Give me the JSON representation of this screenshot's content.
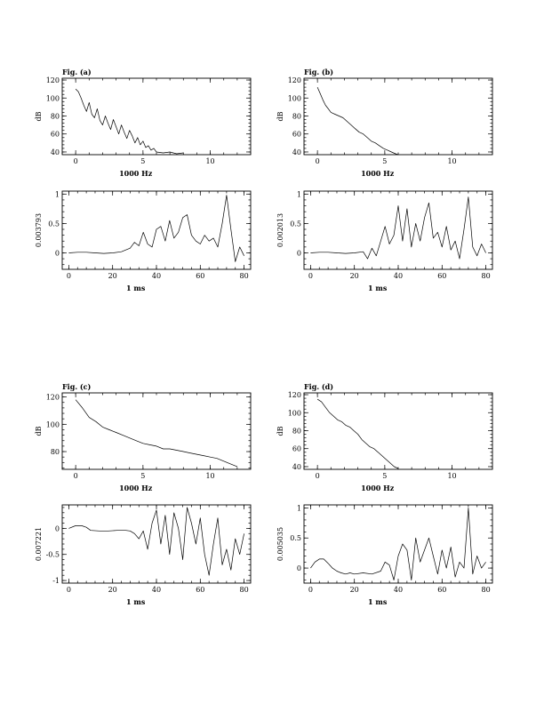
{
  "chart_data": [
    {
      "type": "line",
      "title": "Fig. (a)",
      "xlabel": "1000 Hz",
      "ylabel": "dB",
      "xlim": [
        -1,
        13
      ],
      "ylim": [
        37,
        122
      ],
      "xticks": [
        0,
        5,
        10
      ],
      "yticks": [
        40,
        60,
        80,
        100,
        120
      ],
      "series": [
        {
          "x": [
            0,
            0.2,
            0.4,
            0.6,
            0.8,
            1.0,
            1.2,
            1.4,
            1.6,
            1.8,
            2.0,
            2.2,
            2.4,
            2.6,
            2.8,
            3.0,
            3.2,
            3.4,
            3.6,
            3.8,
            4.0,
            4.2,
            4.4,
            4.6,
            4.8,
            5.0,
            5.2,
            5.4,
            5.6,
            5.8,
            6.0,
            6.5,
            7.0,
            7.5,
            8.0
          ],
          "y": [
            110,
            107,
            100,
            92,
            85,
            95,
            82,
            78,
            88,
            75,
            70,
            80,
            72,
            65,
            76,
            68,
            60,
            70,
            62,
            55,
            64,
            58,
            50,
            56,
            48,
            52,
            45,
            47,
            42,
            44,
            40,
            39,
            40,
            38,
            39
          ]
        }
      ]
    },
    {
      "type": "line",
      "title": "Fig. (b)",
      "xlabel": "1000 Hz",
      "ylabel": "dB",
      "xlim": [
        -1,
        13
      ],
      "ylim": [
        37,
        122
      ],
      "xticks": [
        0,
        5,
        10
      ],
      "yticks": [
        40,
        60,
        80,
        100,
        120
      ],
      "series": [
        {
          "x": [
            0,
            0.2,
            0.4,
            0.6,
            0.8,
            1.0,
            1.3,
            1.6,
            1.9,
            2.2,
            2.5,
            2.8,
            3.1,
            3.4,
            3.7,
            4.0,
            4.3,
            4.6,
            4.9,
            5.2,
            5.5,
            5.8,
            6.0
          ],
          "y": [
            112,
            105,
            98,
            92,
            88,
            84,
            82,
            80,
            78,
            74,
            70,
            66,
            62,
            60,
            56,
            52,
            50,
            47,
            44,
            42,
            40,
            38,
            37
          ]
        }
      ]
    },
    {
      "type": "line",
      "title": "",
      "xlabel": "1 ms",
      "ylabel": "0.003793",
      "xlim": [
        -3,
        83
      ],
      "ylim": [
        -0.28,
        1.05
      ],
      "xticks": [
        0,
        20,
        40,
        60,
        80
      ],
      "yticks": [
        0,
        0.5,
        1
      ],
      "series": [
        {
          "x": [
            0,
            4,
            8,
            12,
            16,
            20,
            24,
            26,
            28,
            30,
            32,
            34,
            36,
            38,
            40,
            42,
            44,
            46,
            48,
            50,
            52,
            54,
            56,
            58,
            60,
            62,
            64,
            66,
            68,
            70,
            72,
            74,
            76,
            78,
            80
          ],
          "y": [
            0,
            0.01,
            0.01,
            0,
            -0.01,
            0,
            0.02,
            0.05,
            0.08,
            0.18,
            0.12,
            0.35,
            0.15,
            0.1,
            0.4,
            0.45,
            0.2,
            0.55,
            0.25,
            0.35,
            0.6,
            0.65,
            0.3,
            0.2,
            0.15,
            0.3,
            0.2,
            0.25,
            0.1,
            0.5,
            0.98,
            0.4,
            -0.15,
            0.1,
            -0.05
          ]
        }
      ]
    },
    {
      "type": "line",
      "title": "",
      "xlabel": "1 ms",
      "ylabel": "0.002013",
      "xlim": [
        -3,
        83
      ],
      "ylim": [
        -0.28,
        1.05
      ],
      "xticks": [
        0,
        20,
        40,
        60,
        80
      ],
      "yticks": [
        0,
        0.5,
        1
      ],
      "series": [
        {
          "x": [
            0,
            4,
            8,
            12,
            16,
            20,
            24,
            26,
            28,
            30,
            32,
            34,
            36,
            38,
            40,
            42,
            44,
            46,
            48,
            50,
            52,
            54,
            56,
            58,
            60,
            62,
            64,
            66,
            68,
            70,
            72,
            74,
            76,
            78,
            80
          ],
          "y": [
            0,
            0.01,
            0.01,
            0,
            -0.01,
            0,
            0.02,
            -0.1,
            0.08,
            -0.05,
            0.2,
            0.45,
            0.15,
            0.3,
            0.8,
            0.2,
            0.75,
            0.1,
            0.5,
            0.2,
            0.6,
            0.85,
            0.25,
            0.35,
            0.1,
            0.45,
            0.05,
            0.2,
            -0.1,
            0.4,
            0.95,
            0.1,
            -0.05,
            0.15,
            0.0
          ]
        }
      ]
    },
    {
      "type": "line",
      "title": "Fig. (c)",
      "xlabel": "1000 Hz",
      "ylabel": "dB",
      "xlim": [
        -1,
        13
      ],
      "ylim": [
        67,
        123
      ],
      "xticks": [
        0,
        5,
        10
      ],
      "yticks": [
        80,
        100,
        120
      ],
      "series": [
        {
          "x": [
            0,
            0.5,
            1.0,
            1.5,
            2.0,
            2.5,
            3.0,
            3.5,
            4.0,
            4.5,
            5.0,
            5.5,
            6.0,
            6.5,
            7.0,
            7.5,
            8.0,
            8.5,
            9.0,
            9.5,
            10.0,
            10.5,
            11.0,
            11.5,
            12.0
          ],
          "y": [
            118,
            112,
            105,
            102,
            98,
            96,
            94,
            92,
            90,
            88,
            86,
            85,
            84,
            82,
            82,
            81,
            80,
            79,
            78,
            77,
            76,
            75,
            73,
            71,
            69
          ]
        }
      ]
    },
    {
      "type": "line",
      "title": "Fig. (d)",
      "xlabel": "1000 Hz",
      "ylabel": "dB",
      "xlim": [
        -1,
        13
      ],
      "ylim": [
        37,
        122
      ],
      "xticks": [
        0,
        5,
        10
      ],
      "yticks": [
        40,
        60,
        80,
        100,
        120
      ],
      "series": [
        {
          "x": [
            0,
            0.3,
            0.6,
            0.9,
            1.2,
            1.5,
            1.8,
            2.1,
            2.4,
            2.7,
            3.0,
            3.3,
            3.6,
            3.9,
            4.2,
            4.5,
            4.8,
            5.1,
            5.4,
            5.7,
            6.0
          ],
          "y": [
            115,
            112,
            106,
            100,
            96,
            92,
            90,
            86,
            84,
            80,
            76,
            70,
            66,
            62,
            60,
            56,
            52,
            48,
            44,
            40,
            38
          ]
        }
      ]
    },
    {
      "type": "line",
      "title": "",
      "xlabel": "1 ms",
      "ylabel": "0.007221",
      "xlim": [
        -3,
        83
      ],
      "ylim": [
        -1.05,
        0.45
      ],
      "xticks": [
        0,
        20,
        40,
        60,
        80
      ],
      "yticks": [
        -1,
        -0.5,
        0
      ],
      "series": [
        {
          "x": [
            0,
            3,
            6,
            8,
            10,
            14,
            18,
            22,
            26,
            28,
            30,
            32,
            34,
            36,
            38,
            40,
            42,
            44,
            46,
            48,
            50,
            52,
            54,
            56,
            58,
            60,
            62,
            64,
            66,
            68,
            70,
            72,
            74,
            76,
            78,
            80
          ],
          "y": [
            0,
            0.05,
            0.05,
            0.02,
            -0.04,
            -0.05,
            -0.05,
            -0.04,
            -0.04,
            -0.05,
            -0.1,
            -0.2,
            -0.05,
            -0.4,
            0.1,
            0.35,
            -0.3,
            0.25,
            -0.5,
            0.3,
            0.0,
            -0.6,
            0.4,
            0.1,
            -0.3,
            0.2,
            -0.5,
            -0.9,
            -0.3,
            0.2,
            -0.7,
            -0.4,
            -0.8,
            -0.2,
            -0.5,
            -0.1
          ]
        }
      ]
    },
    {
      "type": "line",
      "title": "",
      "xlabel": "1 ms",
      "ylabel": "0.005035",
      "xlim": [
        -3,
        83
      ],
      "ylim": [
        -0.25,
        1.05
      ],
      "xticks": [
        0,
        20,
        40,
        60,
        80
      ],
      "yticks": [
        0,
        0.5,
        1
      ],
      "series": [
        {
          "x": [
            0,
            2,
            4,
            6,
            8,
            10,
            12,
            14,
            16,
            18,
            20,
            24,
            28,
            32,
            34,
            36,
            38,
            40,
            42,
            44,
            46,
            48,
            50,
            52,
            54,
            56,
            58,
            60,
            62,
            64,
            66,
            68,
            70,
            72,
            74,
            76,
            78,
            80
          ],
          "y": [
            0,
            0.1,
            0.15,
            0.15,
            0.08,
            0.0,
            -0.05,
            -0.08,
            -0.1,
            -0.08,
            -0.1,
            -0.08,
            -0.1,
            -0.05,
            0.1,
            0.05,
            -0.2,
            0.2,
            0.4,
            0.3,
            -0.2,
            0.5,
            0.1,
            0.3,
            0.5,
            0.2,
            -0.1,
            0.3,
            0.0,
            0.35,
            -0.15,
            0.1,
            0.0,
            1.0,
            -0.1,
            0.2,
            0.0,
            0.1
          ]
        }
      ]
    }
  ]
}
